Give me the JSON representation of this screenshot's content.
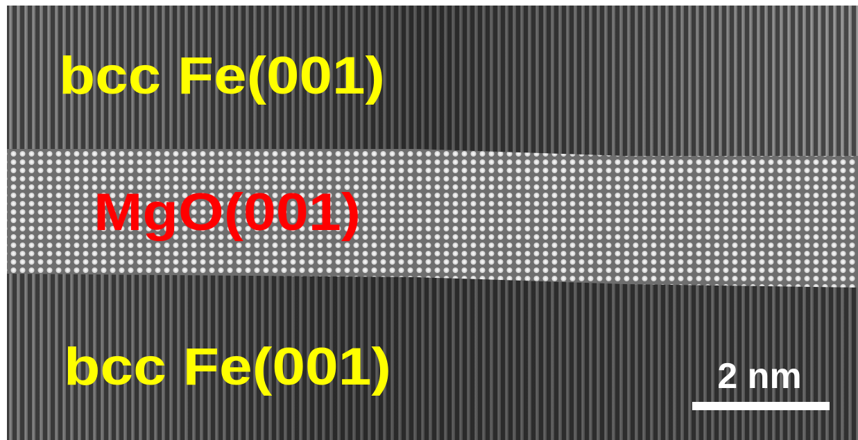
{
  "labels": {
    "top_layer": "bcc Fe(001)",
    "middle_layer": "MgO(001)",
    "bottom_layer": "bcc Fe(001)"
  },
  "scale_bar": {
    "label": "2 nm"
  }
}
